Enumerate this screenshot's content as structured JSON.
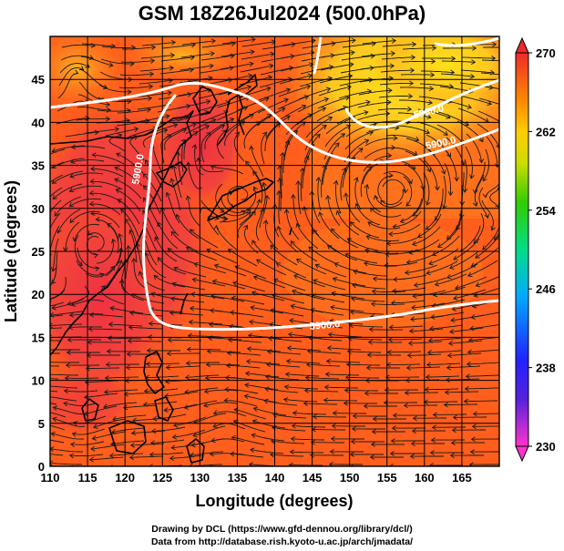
{
  "title": "GSM 18Z26Jul2024 (500.0hPa)",
  "xlabel": "Longitude (degrees)",
  "ylabel": "Latitude  (degrees)",
  "x_ticks": [
    "110",
    "115",
    "120",
    "125",
    "130",
    "135",
    "140",
    "145",
    "150",
    "155",
    "160",
    "165"
  ],
  "y_ticks": [
    "0",
    "5",
    "10",
    "15",
    "20",
    "25",
    "30",
    "35",
    "40",
    "45"
  ],
  "colorbar_ticks": [
    "270",
    "262",
    "254",
    "246",
    "238",
    "230"
  ],
  "contour_labels": [
    "5900.0",
    "5900.0",
    "5900.0",
    "5900.0"
  ],
  "credit_line1": "Drawing by DCL (https://www.gfd-dennou.org/library/dcl/)",
  "credit_line2": "Data from http://database.rish.kyoto-u.ac.jp/arch/jmadata/",
  "chart_data": {
    "type": "heatmap",
    "field": "temperature (K) with 5900 m geopotential contour and wind streamlines",
    "xlim": [
      110,
      170
    ],
    "ylim": [
      0,
      50
    ],
    "colorbar_range": [
      230,
      270
    ],
    "colormap": [
      "#ff33cc",
      "#3333ff",
      "#00c8ff",
      "#00e070",
      "#88dd00",
      "#ffee00",
      "#ffaa00",
      "#ff5500",
      "#ee2020"
    ],
    "contour_value": 5900.0,
    "grid": true
  },
  "colors": {
    "background_field": "#ff5a1e",
    "warm_core": "#f23a40",
    "cool_region": "#ffd21e",
    "contour": "#ffffff",
    "streamline": "#1a1a1a",
    "coast": "#000000"
  }
}
